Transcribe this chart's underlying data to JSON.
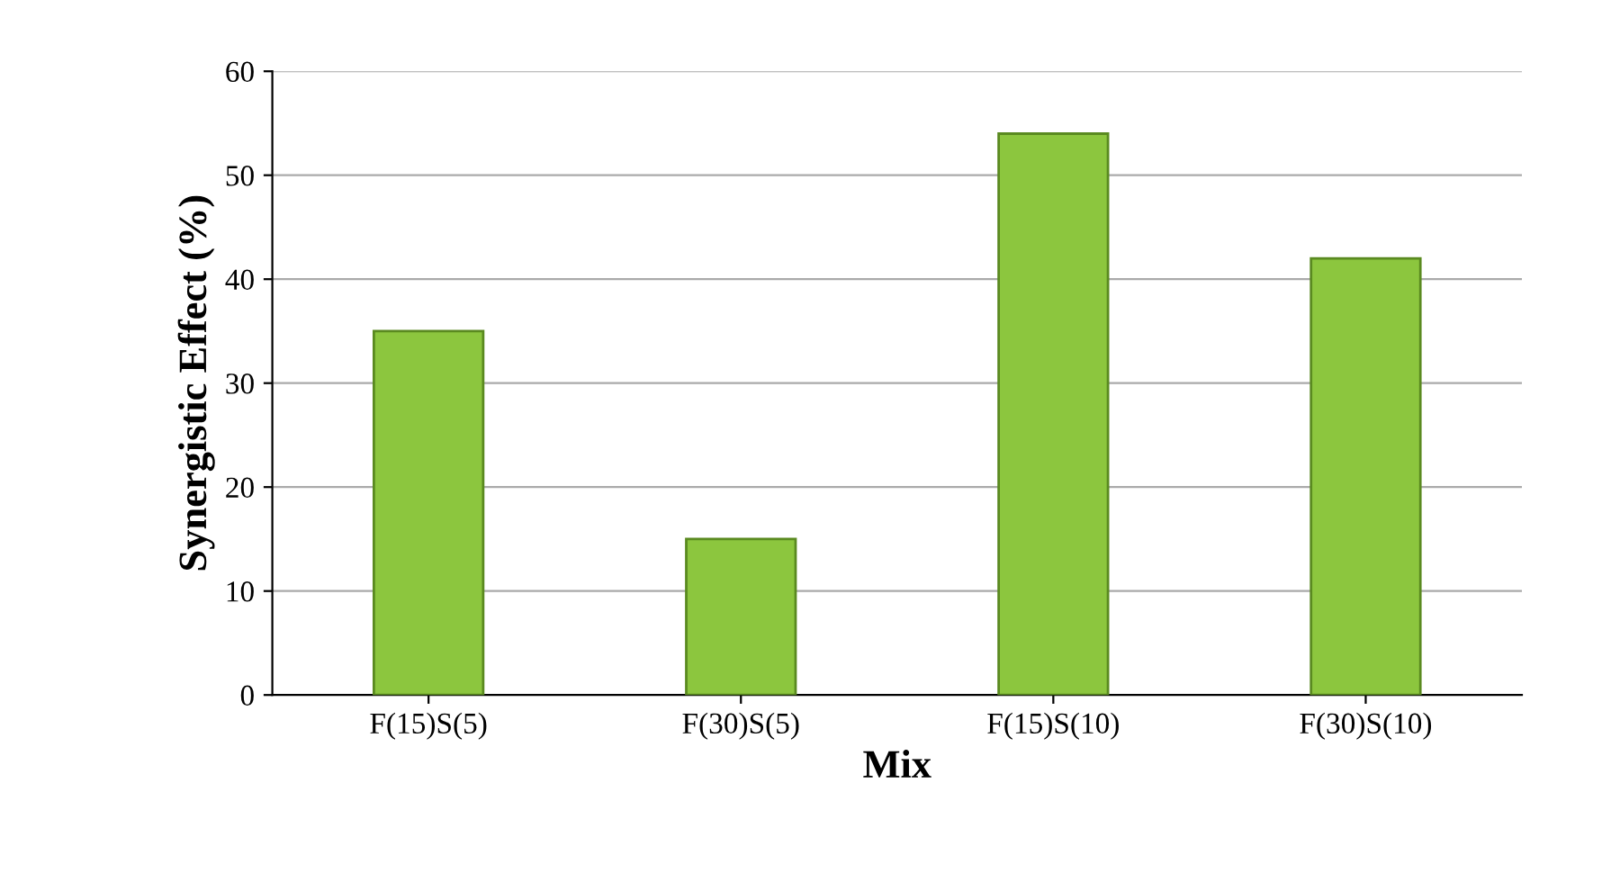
{
  "chart_data": {
    "type": "bar",
    "xlabel": "Mix",
    "ylabel": "Synergistic Effect (%)",
    "categories": [
      "F(15)S(5)",
      "F(30)S(5)",
      "F(15)S(10)",
      "F(30)S(10)"
    ],
    "values": [
      35,
      15,
      54,
      42
    ],
    "color": "#8cc63e",
    "ylim": [
      0,
      60
    ],
    "yticks": [
      0,
      10,
      20,
      30,
      40,
      50,
      60
    ],
    "grid": "y",
    "legend": false
  }
}
